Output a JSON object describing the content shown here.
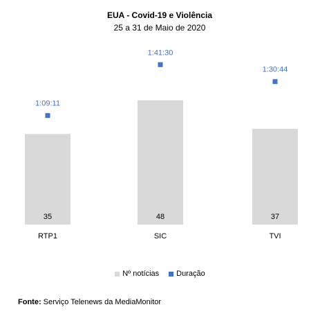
{
  "chart_data": {
    "type": "bar",
    "title": "EUA - Covid-19 e Violência",
    "subtitle": "25 a 31 de Maio de 2020",
    "categories": [
      "RTP1",
      "SIC",
      "TVI"
    ],
    "series": [
      {
        "name": "Nº notícias",
        "type": "bar",
        "values": [
          35,
          48,
          37
        ],
        "color": "#d9d9d9"
      },
      {
        "name": "Duração",
        "type": "marker",
        "values": [
          "1:09:11",
          "1:41:30",
          "1:30:44"
        ],
        "seconds": [
          4151,
          6090,
          5444
        ],
        "color": "#4472c4"
      }
    ],
    "legend": "bottom",
    "grid": false
  },
  "source": {
    "label": "Fonte:",
    "text": " Serviço Telenews da MediaMonitor"
  }
}
